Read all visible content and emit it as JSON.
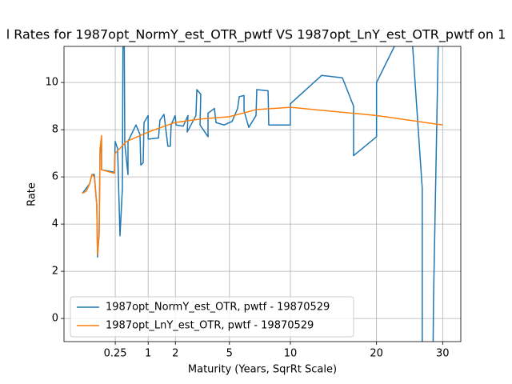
{
  "chart_data": {
    "type": "line",
    "title": "l Rates for 1987opt_NormY_est_OTR_pwtf VS 1987opt_LnY_est_OTR_pwtf on 1",
    "xlabel": "Maturity (Years, SqrRt Scale)",
    "ylabel": "Rate",
    "xscale": "sqrt",
    "grid": true,
    "legend": "lower left",
    "xlim": [
      -0.078,
      33.1
    ],
    "ylim": [
      -0.98,
      11.53
    ],
    "xticks": [
      0.25,
      1,
      2,
      5,
      10,
      20,
      30
    ],
    "yticks": [
      0,
      2,
      4,
      6,
      8,
      10
    ],
    "series": [
      {
        "name": "1987opt_NormY_est_OTR, pwtf - 19870529",
        "color": "#1f77b4",
        "x": [
          0,
          0.012,
          0.021,
          0.033,
          0.048,
          0.053,
          0.065,
          0.072,
          0.085,
          0.085,
          0.237,
          0.249,
          0.287,
          0.327,
          0.37,
          0.385,
          0.4,
          0.416,
          0.481,
          0.481,
          0.664,
          0.767,
          0.789,
          0.855,
          0.878,
          1,
          1,
          1.34,
          1.39,
          1.54,
          1.69,
          1.79,
          1.82,
          1.99,
          2.03,
          2.35,
          2.58,
          2.54,
          2.98,
          3.03,
          3.24,
          3.2,
          3.65,
          3.65,
          4.03,
          4.13,
          4.64,
          5.18,
          5.57,
          5.69,
          6.04,
          6.04,
          6.4,
          6.97,
          7.03,
          7.97,
          8.03,
          10,
          10,
          13.23,
          15.63,
          17,
          17,
          20,
          20,
          23.3,
          25.1,
          26.7,
          26.7,
          28.4,
          28.5,
          29.3
        ],
        "values": [
          5.3,
          5.7,
          6.1,
          6.1,
          4.8,
          2.6,
          3.6,
          7.0,
          7.6,
          6.3,
          6.2,
          7.5,
          7.2,
          3.5,
          5.5,
          14,
          14,
          7.4,
          6.1,
          7.5,
          8.2,
          7.8,
          6.5,
          6.6,
          8.3,
          8.6,
          7.6,
          7.65,
          8.4,
          8.65,
          7.3,
          7.3,
          8.2,
          8.6,
          8.2,
          8.15,
          8.6,
          7.9,
          8.6,
          9.7,
          9.5,
          8.2,
          7.7,
          8.7,
          8.9,
          8.3,
          8.2,
          8.35,
          8.9,
          9.4,
          9.45,
          8.8,
          8.1,
          8.6,
          9.7,
          9.65,
          8.2,
          8.2,
          9.1,
          10.3,
          10.2,
          9.0,
          6.9,
          7.7,
          10.0,
          12,
          12,
          5.5,
          -2,
          -2,
          0.8,
          12
        ]
      },
      {
        "name": "1987opt_LnY_est_OTR, pwtf - 19870529",
        "color": "#ff7f0e",
        "x": [
          0,
          0.0037,
          0.012,
          0.021,
          0.033,
          0.048,
          0.053,
          0.065,
          0.072,
          0.085,
          0.085,
          0.237,
          0.249,
          0.448,
          0.568,
          1,
          1.96,
          3.2,
          5.0,
          6.97,
          10,
          20,
          30
        ],
        "values": [
          5.3,
          5.4,
          5.7,
          6.1,
          6.0,
          4.8,
          2.7,
          3.6,
          7.2,
          7.75,
          6.3,
          6.15,
          7.0,
          7.5,
          7.6,
          7.9,
          8.3,
          8.45,
          8.55,
          8.85,
          8.95,
          8.6,
          8.2
        ]
      }
    ]
  }
}
